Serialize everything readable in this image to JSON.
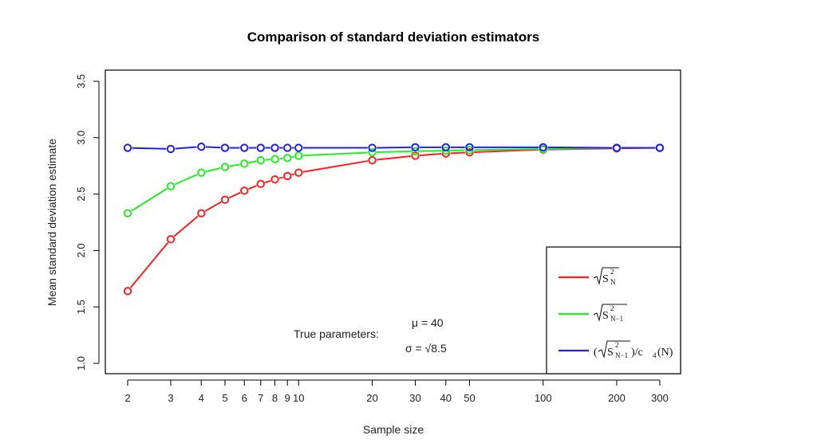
{
  "chart_data": {
    "type": "line",
    "title": "Comparison of standard deviation estimators",
    "xlabel": "Sample size",
    "ylabel": "Mean standard deviation estimate",
    "x_scale": "log",
    "xlim": [
      2,
      300
    ],
    "ylim": [
      1.0,
      3.5
    ],
    "x_ticks": [
      2,
      3,
      4,
      5,
      6,
      7,
      8,
      9,
      10,
      20,
      30,
      40,
      50,
      100,
      200,
      300
    ],
    "x_tick_labels": [
      "2",
      "3",
      "4",
      "5",
      "6",
      "7",
      "8",
      "9",
      "10",
      "20",
      "30",
      "40",
      "50",
      "100",
      "200",
      "300"
    ],
    "y_ticks": [
      1.0,
      1.5,
      2.0,
      2.5,
      3.0,
      3.5
    ],
    "y_tick_labels": [
      "1.0",
      "1.5",
      "2.0",
      "2.5",
      "3.0",
      "3.5"
    ],
    "grid": false,
    "legend_position": "bottom-right",
    "x": [
      2,
      3,
      4,
      5,
      6,
      7,
      8,
      9,
      10,
      20,
      30,
      40,
      50,
      100,
      200,
      300
    ],
    "series": [
      {
        "name": "√S²_N",
        "color": "#ff2020",
        "values": [
          1.64,
          2.1,
          2.33,
          2.45,
          2.53,
          2.59,
          2.63,
          2.66,
          2.69,
          2.8,
          2.84,
          2.86,
          2.87,
          2.895,
          2.905,
          2.91
        ]
      },
      {
        "name": "√S²_{N−1}",
        "color": "#22ee22",
        "values": [
          2.33,
          2.57,
          2.69,
          2.74,
          2.77,
          2.8,
          2.81,
          2.82,
          2.84,
          2.87,
          2.88,
          2.885,
          2.89,
          2.9,
          2.91,
          2.91
        ]
      },
      {
        "name": "(√S²_{N−1})/c4(N)",
        "color": "#2020ee",
        "values": [
          2.91,
          2.9,
          2.92,
          2.91,
          2.91,
          2.91,
          2.91,
          2.91,
          2.91,
          2.91,
          2.915,
          2.915,
          2.915,
          2.915,
          2.91,
          2.91
        ]
      }
    ],
    "annotations": {
      "label": "True parameters:",
      "mu": "μ = 40",
      "sigma": "σ = √8.5"
    },
    "legend": {
      "s1": {
        "main": "S",
        "sup": "2",
        "sub": "N"
      },
      "s2": {
        "main": "S",
        "sup": "2",
        "sub": "N−1"
      },
      "s3": {
        "open": "(",
        "main": "S",
        "sup": "2",
        "sub": "N−1",
        "close": ")/c",
        "csub": "4",
        "arg": "(N)"
      }
    }
  }
}
